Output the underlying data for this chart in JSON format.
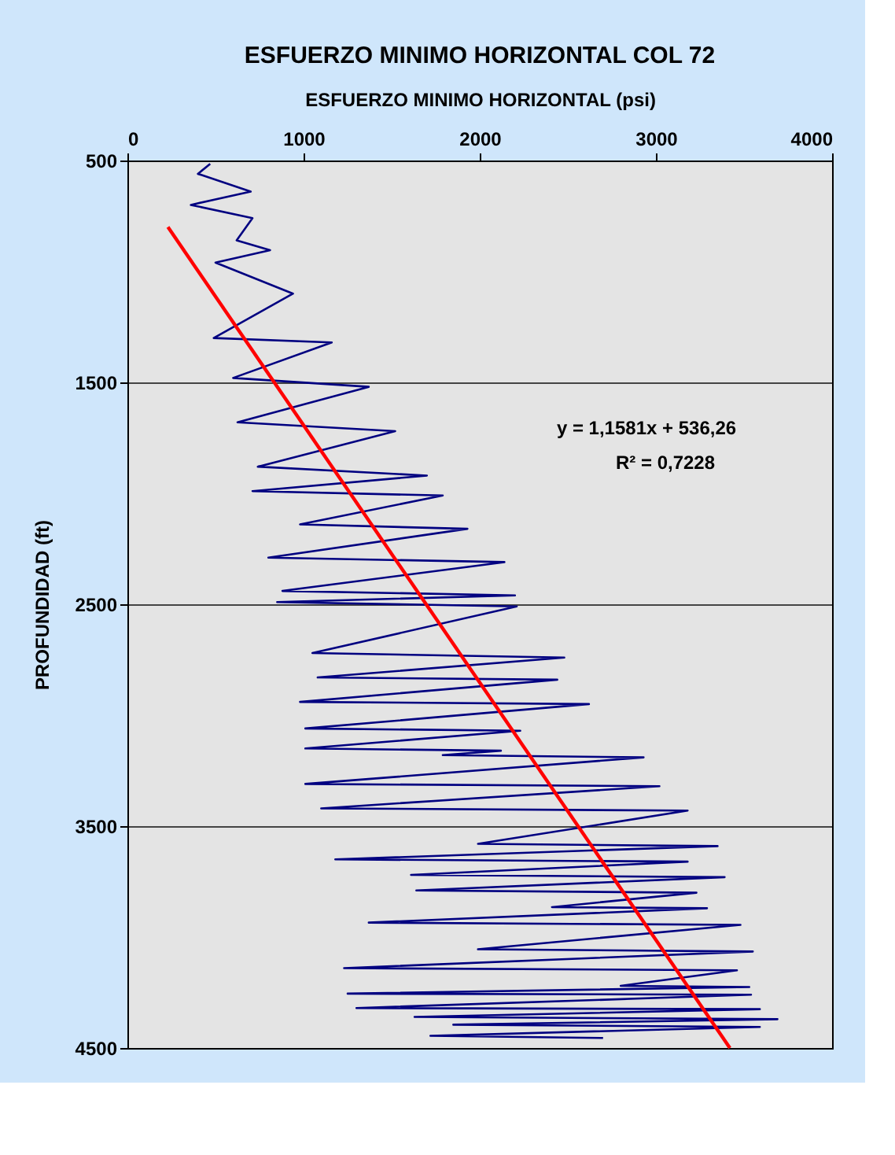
{
  "chart_data": {
    "type": "line",
    "title": "ESFUERZO MINIMO HORIZONTAL COL 72",
    "xlabel": "ESFUERZO MINIMO HORIZONTAL (psi)",
    "ylabel": "PROFUNDIDAD (ft)",
    "xlim": [
      0,
      4000
    ],
    "xticks": [
      0,
      1000,
      2000,
      3000,
      4000
    ],
    "ylim": [
      4500,
      500
    ],
    "yticks": [
      500,
      1500,
      2500,
      3500,
      4500
    ],
    "grid": "y",
    "marker": "none",
    "line_style": "solid",
    "annotations": [
      "y = 1,1581x + 536,26",
      "R² = 0,7228"
    ],
    "series": [
      {
        "color": "#000080",
        "x": [
          470,
          400,
          700,
          360,
          710,
          620,
          810,
          500,
          940,
          490,
          1160,
          600,
          1370,
          625,
          1520,
          740,
          1700,
          710,
          1790,
          980,
          1930,
          800,
          2140,
          880,
          2200,
          850,
          2210,
          1050,
          2480,
          1080,
          2440,
          980,
          2620,
          1010,
          2230,
          1010,
          2120,
          1790,
          2930,
          1010,
          3020,
          1100,
          3180,
          1990,
          3350,
          1180,
          3180,
          1610,
          3390,
          1640,
          3230,
          2410,
          3290,
          1370,
          3480,
          1990,
          3550,
          1230,
          3460,
          2800,
          3530,
          1250,
          3540,
          1300,
          3590,
          1630,
          3690,
          1850,
          3590,
          1720,
          2700
        ],
        "values": [
          515,
          560,
          640,
          700,
          760,
          860,
          904,
          960,
          1100,
          1300,
          1320,
          1480,
          1520,
          1680,
          1720,
          1880,
          1920,
          1990,
          2010,
          2140,
          2160,
          2290,
          2310,
          2440,
          2460,
          2490,
          2510,
          2720,
          2740,
          2830,
          2840,
          2940,
          2950,
          3060,
          3070,
          3150,
          3160,
          3180,
          3190,
          3310,
          3320,
          3420,
          3430,
          3580,
          3590,
          3650,
          3660,
          3720,
          3730,
          3790,
          3800,
          3865,
          3870,
          3935,
          3945,
          4055,
          4065,
          4140,
          4150,
          4220,
          4225,
          4255,
          4260,
          4320,
          4325,
          4360,
          4370,
          4395,
          4405,
          4445,
          4455
        ]
      },
      {
        "type": "line",
        "color": "#ff0000",
        "x": [
          230,
          3420
        ],
        "values": [
          800,
          4500
        ]
      }
    ]
  }
}
